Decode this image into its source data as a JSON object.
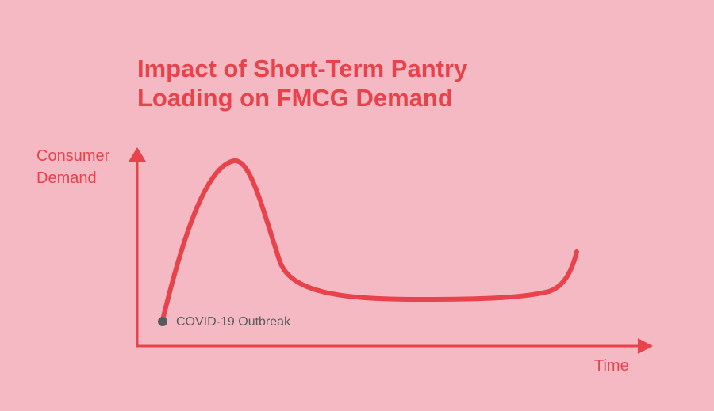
{
  "title_lines": [
    "Impact of Short-Term Pantry",
    "Loading on FMCG Demand"
  ],
  "y_axis_label_lines": [
    "Consumer",
    "Demand"
  ],
  "x_axis_label": "Time",
  "annotation": "COVID-19 Outbreak",
  "colors": {
    "background": "#f5b9c4",
    "accent": "#e8424b",
    "marker": "#555a5f",
    "annotation_text": "#5c5c5c"
  }
}
